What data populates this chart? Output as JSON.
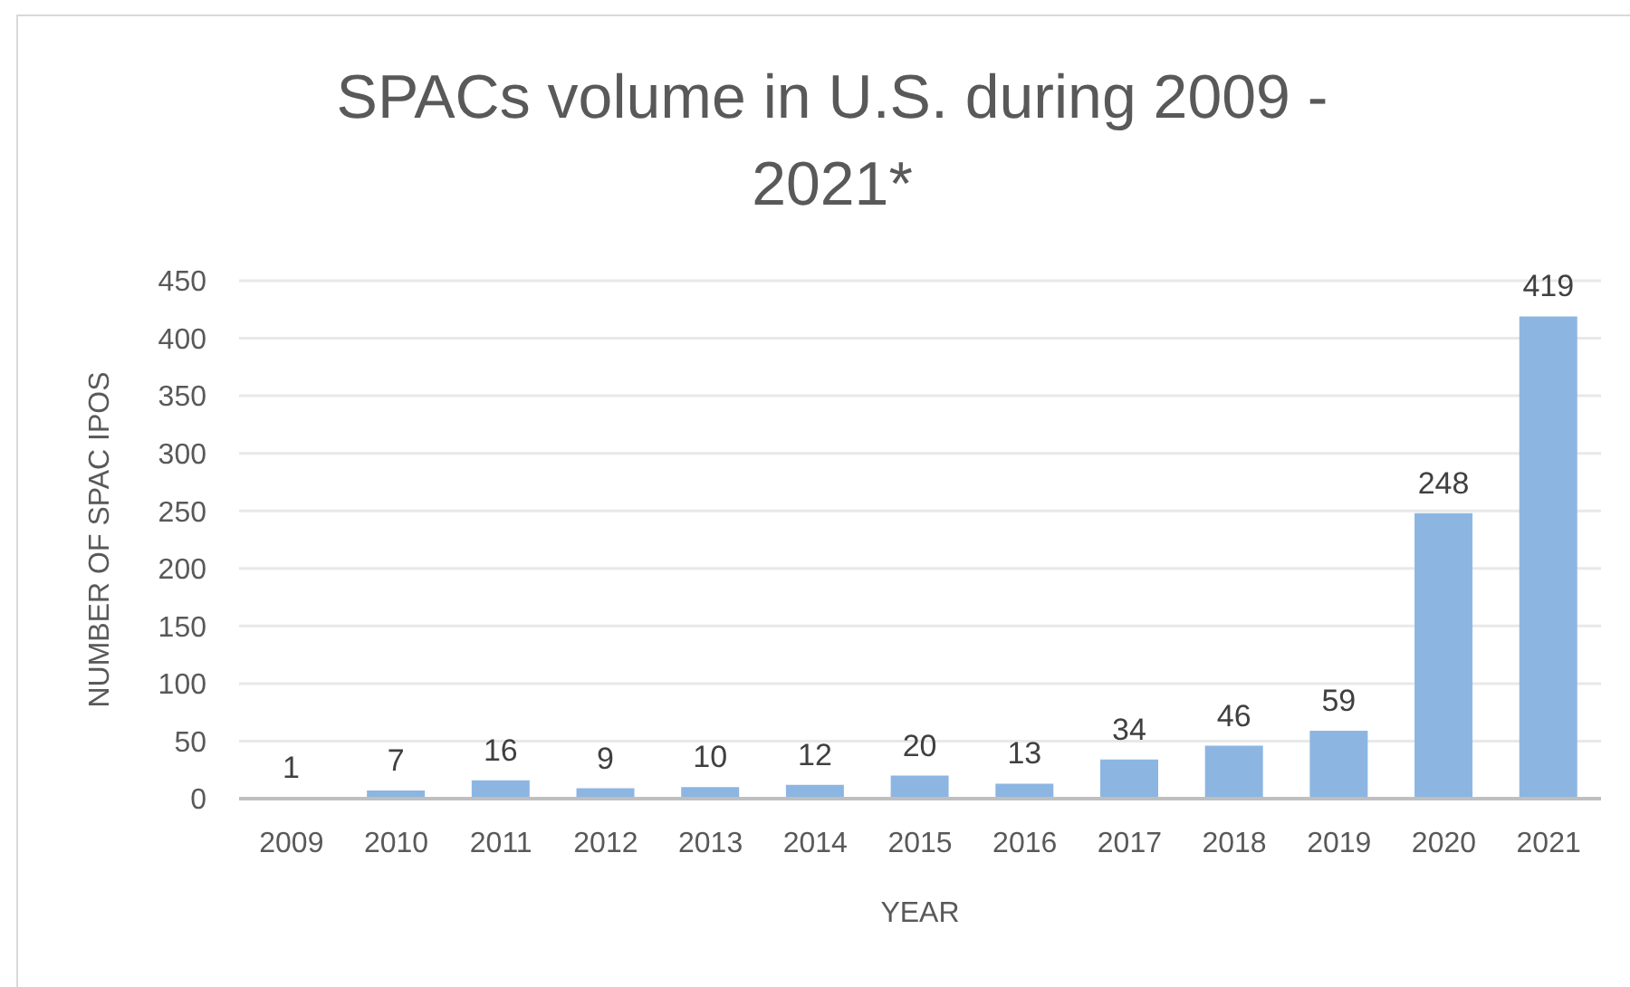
{
  "chart_data": {
    "type": "bar",
    "title": "SPACs volume in U.S. during 2009 - 2021*",
    "xlabel": "YEAR",
    "ylabel": "NUMBER OF SPAC IPOS",
    "categories": [
      "2009",
      "2010",
      "2011",
      "2012",
      "2013",
      "2014",
      "2015",
      "2016",
      "2017",
      "2018",
      "2019",
      "2020",
      "2021"
    ],
    "values": [
      1,
      7,
      16,
      9,
      10,
      12,
      20,
      13,
      34,
      46,
      59,
      248,
      419
    ],
    "color": "#8cb6e1",
    "ylim": [
      0,
      450
    ],
    "yticks": [
      0,
      50,
      100,
      150,
      200,
      250,
      300,
      350,
      400,
      450
    ],
    "grid": "y",
    "data_labels": true
  }
}
